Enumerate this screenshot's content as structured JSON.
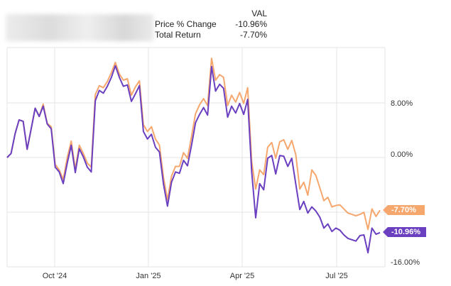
{
  "legend": {
    "ticker": "VAL",
    "rows": [
      {
        "label": "Price % Change",
        "value": "-10.96%"
      },
      {
        "label": "Total Return",
        "value": "-7.70%"
      }
    ]
  },
  "chart_data": {
    "type": "line",
    "x_ticks": [
      "Oct '24",
      "Jan '25",
      "Apr '25",
      "Jul '25"
    ],
    "y_ticks": [
      "8.00%",
      "0.00%",
      "-16.00%"
    ],
    "ylim": [
      -16,
      16
    ],
    "grid": true,
    "end_labels": [
      "-7.70%",
      "-10.96%"
    ],
    "colors": {
      "total_return": "#f5a76e",
      "price_change": "#6a3fc0"
    },
    "series": [
      {
        "name": "Total Return",
        "values": [
          0,
          0.6,
          3.5,
          5.5,
          5.3,
          1.2,
          4.2,
          7.2,
          6,
          7.8,
          5,
          4.5,
          -1,
          -1.8,
          -3.2,
          0,
          2.4,
          -1.7,
          1.8,
          0.6,
          -0.8,
          -1.4,
          9.2,
          10.5,
          10.2,
          11.1,
          12.4,
          13.9,
          12.2,
          11.3,
          11.5,
          9.1,
          10.3,
          11.2,
          4.8,
          3.8,
          4.5,
          2.7,
          1.8,
          -2.9,
          -6.2,
          -2.7,
          -1.3,
          -1.3,
          0.7,
          -0.1,
          3.1,
          6.4,
          7.7,
          8.6,
          7.6,
          14.5,
          11.3,
          12.1,
          11.7,
          7.6,
          9.1,
          8.1,
          9.5,
          7.9,
          10.2,
          -0.6,
          -4.6,
          -1.8,
          -2.5,
          1.5,
          2.2,
          -0.1,
          2.3,
          2.6,
          1.2,
          2.5,
          0.4,
          -4.6,
          -3.6,
          -5.5,
          -1.8,
          -2.6,
          -4.4,
          -6.3,
          -5.8,
          -7.2,
          -7.0,
          -6.9,
          -7.5,
          -8.1,
          -8.3,
          -8.5,
          -8.3,
          -8.0,
          -10.5,
          -7.5,
          -8.6,
          -7.7
        ]
      },
      {
        "name": "Price % Change",
        "values": [
          0,
          0.6,
          3.5,
          5.5,
          5.3,
          1.2,
          4.2,
          7.2,
          6,
          7.5,
          4.9,
          4.2,
          -1.4,
          -2.1,
          -3.8,
          -0.8,
          1.8,
          -2.2,
          1.3,
          0.1,
          -1.4,
          -2.1,
          8.3,
          9.8,
          9.4,
          10.4,
          11.7,
          13.4,
          11.7,
          10.4,
          10.6,
          8.2,
          9.3,
          10.5,
          3.8,
          2.7,
          3.4,
          1.5,
          0.8,
          -3.9,
          -7.1,
          -3.6,
          -2.1,
          -2.3,
          -0.4,
          -1.2,
          1.8,
          5.1,
          6.3,
          7.3,
          6.2,
          13.3,
          9.7,
          10.7,
          10.1,
          5.9,
          7.5,
          6.5,
          7.9,
          6.3,
          8.5,
          -2.1,
          -8.8,
          -3.8,
          -4.7,
          -0.1,
          0.3,
          -2.4,
          0.3,
          0.2,
          -1.3,
          -0.1,
          -3.9,
          -7.6,
          -6.4,
          -8.1,
          -7.2,
          -7.8,
          -8.7,
          -10.3,
          -9.7,
          -10.8,
          -10.3,
          -10.6,
          -11.3,
          -11.8,
          -12,
          -12.2,
          -11.4,
          -11.3,
          -13.9,
          -10.3,
          -11.2,
          -10.96
        ]
      }
    ]
  }
}
